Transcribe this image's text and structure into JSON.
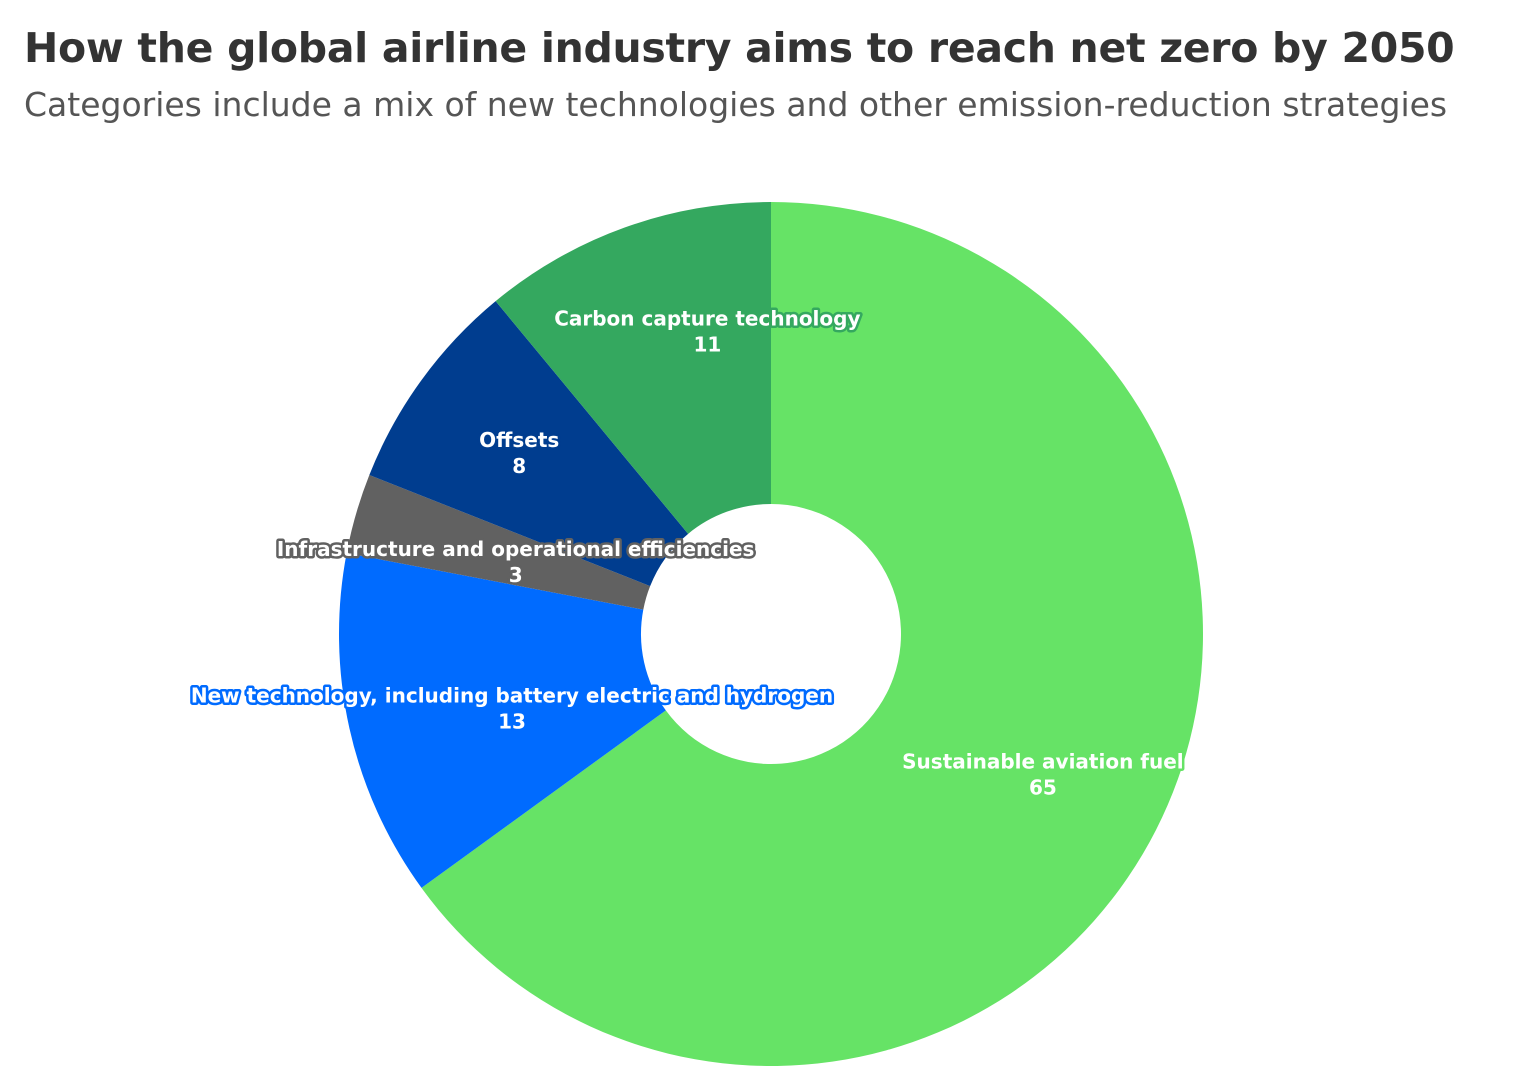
{
  "title": "How the global airline industry aims to reach net zero by 2050",
  "subtitle": "Categories include a mix of new technologies and other emission-reduction strategies",
  "chart_data": {
    "type": "pie",
    "variant": "donut",
    "title": "How the global airline industry aims to reach net zero by 2050",
    "subtitle": "Categories include a mix of new technologies and other emission-reduction strategies",
    "start": "12 o'clock, clockwise",
    "legend": "none",
    "slices": [
      {
        "label": "Sustainable aviation fuel",
        "value": 65,
        "value_text": "65",
        "color": "#66e366",
        "halo": "#66e366"
      },
      {
        "label": "New technology, including battery electric and hydrogen",
        "value": 13,
        "value_text": "13",
        "color": "#006bff",
        "halo": "#006bff"
      },
      {
        "label": "Infrastructure and operational efficiencies",
        "value": 3,
        "value_text": "3",
        "color": "#616161",
        "halo": "#616161"
      },
      {
        "label": "Offsets",
        "value": 8,
        "value_text": "8",
        "color": "#003d8f",
        "halo": "#003d8f"
      },
      {
        "label": "Carbon capture technology",
        "value": 11,
        "value_text": "11",
        "color": "#34a85f",
        "halo": "#34a85f"
      }
    ]
  }
}
